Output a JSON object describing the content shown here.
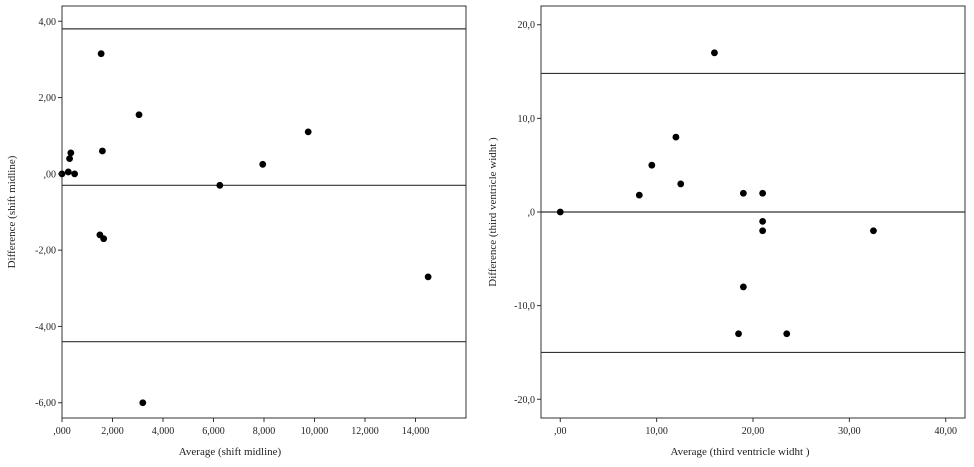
{
  "chart_data": [
    {
      "type": "scatter",
      "xlabel": "Average (shift midline)",
      "ylabel": "Difference (shift midline)",
      "xlim": [
        0,
        16
      ],
      "ylim": [
        -6.4,
        4.4
      ],
      "x_ticks": [
        ",000",
        "2,000",
        "4,000",
        "6,000",
        "8,000",
        "10,000",
        "12,000",
        "14,000"
      ],
      "y_ticks": [
        "4,00",
        "2,00",
        ",00",
        "-2,00",
        "-4,00",
        "-6,00"
      ],
      "x_tick_values": [
        0,
        2,
        4,
        6,
        8,
        10,
        12,
        14
      ],
      "y_tick_values": [
        4,
        2,
        0,
        -2,
        -4,
        -6
      ],
      "reference_lines": [
        3.8,
        -0.3,
        -4.4
      ],
      "points": [
        {
          "x": 0.0,
          "y": 0.0
        },
        {
          "x": 0.25,
          "y": 0.05
        },
        {
          "x": 0.3,
          "y": 0.4
        },
        {
          "x": 0.35,
          "y": 0.55
        },
        {
          "x": 0.5,
          "y": 0.0
        },
        {
          "x": 1.55,
          "y": 3.15
        },
        {
          "x": 1.6,
          "y": 0.6
        },
        {
          "x": 1.5,
          "y": -1.6
        },
        {
          "x": 1.65,
          "y": -1.7
        },
        {
          "x": 3.05,
          "y": 1.55
        },
        {
          "x": 3.2,
          "y": -6.0
        },
        {
          "x": 6.25,
          "y": -0.3
        },
        {
          "x": 7.95,
          "y": 0.25
        },
        {
          "x": 9.75,
          "y": 1.1
        },
        {
          "x": 14.5,
          "y": -2.7
        }
      ]
    },
    {
      "type": "scatter",
      "xlabel": "Average (third ventricle widht )",
      "ylabel": "Difference (third ventricle widht )",
      "xlim": [
        -2,
        42
      ],
      "ylim": [
        -22,
        22
      ],
      "x_ticks": [
        ",00",
        "10,00",
        "20,00",
        "30,00",
        "40,00"
      ],
      "y_ticks": [
        "20,0",
        "10,0",
        ",0",
        "-10,0",
        "-20,0"
      ],
      "x_tick_values": [
        0,
        10,
        20,
        30,
        40
      ],
      "y_tick_values": [
        20,
        10,
        0,
        -10,
        -20
      ],
      "reference_lines": [
        14.8,
        0,
        -15
      ],
      "points": [
        {
          "x": 0.0,
          "y": 0.0
        },
        {
          "x": 8.2,
          "y": 1.8
        },
        {
          "x": 9.5,
          "y": 5.0
        },
        {
          "x": 12.0,
          "y": 8.0
        },
        {
          "x": 12.5,
          "y": 3.0
        },
        {
          "x": 16.0,
          "y": 17.0
        },
        {
          "x": 18.5,
          "y": -13.0
        },
        {
          "x": 19.0,
          "y": 2.0
        },
        {
          "x": 19.0,
          "y": -8.0
        },
        {
          "x": 21.0,
          "y": 2.0
        },
        {
          "x": 21.0,
          "y": -1.0
        },
        {
          "x": 21.0,
          "y": -2.0
        },
        {
          "x": 23.5,
          "y": -13.0
        },
        {
          "x": 32.5,
          "y": -2.0
        }
      ]
    }
  ]
}
